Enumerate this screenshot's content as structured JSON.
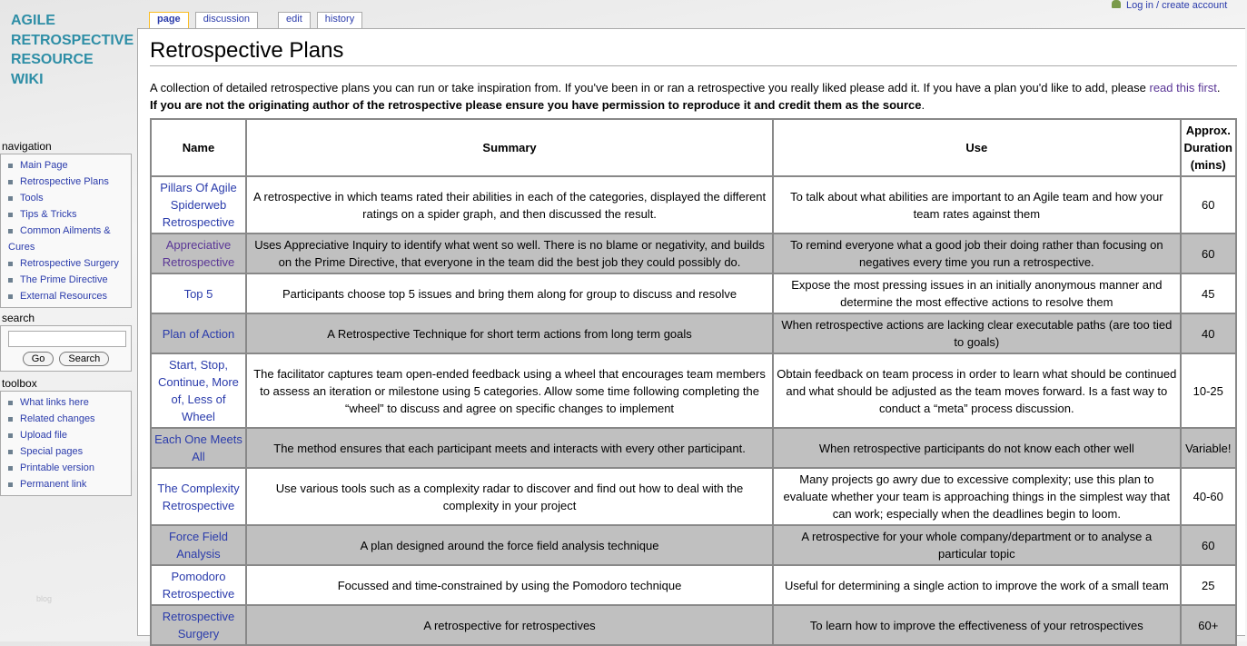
{
  "logo": [
    "AGILE",
    "RETROSPECTIVE",
    "RESOURCE",
    "WIKI"
  ],
  "tabs": {
    "page": "page",
    "discussion": "discussion",
    "edit": "edit",
    "history": "history"
  },
  "login": "Log in / create account",
  "title": "Retrospective Plans",
  "intro": "A collection of detailed retrospective plans you can run or take inspiration from. If you've been in or ran a retrospective you really liked please add it. If you have a plan you'd like to add, please ",
  "intro_link": "read this first",
  "warning": "If you are not the originating author of the retrospective please ensure you have permission to reproduce it and credit them as the source",
  "navigation": {
    "title": "navigation",
    "items": [
      "Main Page",
      "Retrospective Plans",
      "Tools",
      "Tips & Tricks",
      "Common Ailments & Cures",
      "Retrospective Surgery",
      "The Prime Directive",
      "External Resources"
    ]
  },
  "search": {
    "title": "search",
    "go": "Go",
    "search": "Search",
    "value": ""
  },
  "toolbox": {
    "title": "toolbox",
    "items": [
      "What links here",
      "Related changes",
      "Upload file",
      "Special pages",
      "Printable version",
      "Permanent link"
    ]
  },
  "blog": "blog",
  "table": {
    "headers": [
      "Name",
      "Summary",
      "Use",
      "Approx. Duration (mins)"
    ],
    "rows": [
      [
        "Pillars Of Agile Spiderweb Retrospective",
        "A retrospective in which teams rated their abilities in each of the categories, displayed the different ratings on a spider graph, and then discussed the result.",
        "To talk about what abilities are important to an Agile team and how your team rates against them",
        "60"
      ],
      [
        "Appreciative Retrospective",
        "Uses Appreciative Inquiry to identify what went so well. There is no blame or negativity, and builds on the Prime Directive, that everyone in the team did the best job they could possibly do.",
        "To remind everyone what a good job their doing rather than focusing on negatives every time you run a retrospective.",
        "60"
      ],
      [
        "Top 5",
        "Participants choose top 5 issues and bring them along for group to discuss and resolve",
        "Expose the most pressing issues in an initially anonymous manner and determine the most effective actions to resolve them",
        "45"
      ],
      [
        "Plan of Action",
        "A Retrospective Technique for short term actions from long term goals",
        "When retrospective actions are lacking clear executable paths (are too tied to goals)",
        "40"
      ],
      [
        "Start, Stop, Continue, More of, Less of Wheel",
        "The facilitator captures team open-ended feedback using a wheel that encourages team members to assess an iteration or milestone using 5 categories. Allow some time following completing the “wheel” to discuss and agree on specific changes to implement",
        "Obtain feedback on team process in order to learn what should be continued and what should be adjusted as the team moves forward. Is a fast way to conduct a “meta” process discussion.",
        "10-25"
      ],
      [
        "Each One Meets All",
        "The method ensures that each participant meets and interacts with every other participant.",
        "When retrospective participants do not know each other well",
        "Variable!"
      ],
      [
        "The Complexity Retrospective",
        "Use various tools such as a complexity radar to discover and find out how to deal with the complexity in your project",
        "Many projects go awry due to excessive complexity; use this plan to evaluate whether your team is approaching things in the simplest way that can work; especially when the deadlines begin to loom.",
        "40-60"
      ],
      [
        "Force Field Analysis",
        "A plan designed around the force field analysis technique",
        "A retrospective for your whole company/department or to analyse a particular topic",
        "60"
      ],
      [
        "Pomodoro Retrospective",
        "Focussed and time-constrained by using the Pomodoro technique",
        "Useful for determining a single action to improve the work of a small team",
        "25"
      ],
      [
        "Retrospective Surgery",
        "A retrospective for retrospectives",
        "To learn how to improve the effectiveness of your retrospectives",
        "60+"
      ]
    ]
  }
}
